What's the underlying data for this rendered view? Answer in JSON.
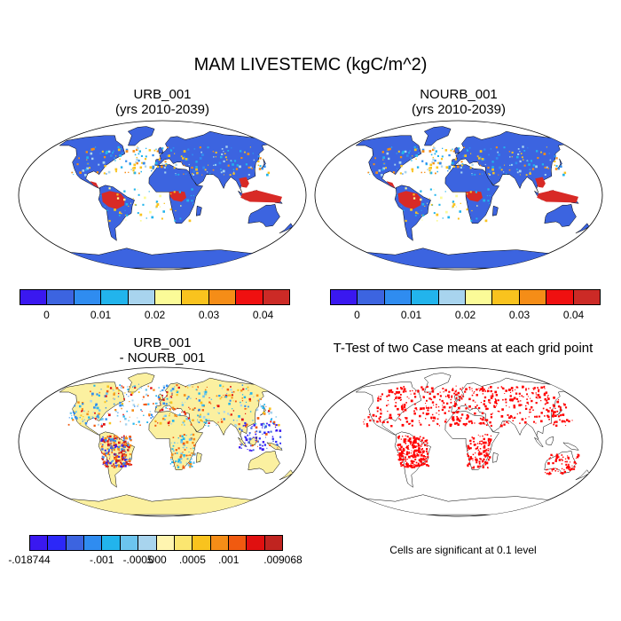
{
  "main_title": "MAM LIVESTEMC (kgC/m^2)",
  "panels": {
    "urb": {
      "title_line1": "URB_001",
      "title_line2": "(yrs 2010-2039)"
    },
    "nourb": {
      "title_line1": "NOURB_001",
      "title_line2": "(yrs 2010-2039)"
    },
    "diff": {
      "title_line1": "URB_001",
      "title_line2": "- NOURB_001"
    },
    "ttest": {
      "title": "T-Test of two Case means at each grid point",
      "note": "Cells are significant at 0.1 level"
    }
  },
  "colorbar_main": {
    "colors": [
      "#3a18f0",
      "#3c64e0",
      "#2f8cf0",
      "#22b4ec",
      "#a8d4ee",
      "#fbfb98",
      "#f9c31e",
      "#f58d17",
      "#f01010",
      "#cc2a26"
    ],
    "ticks": [
      "0",
      "0.01",
      "0.02",
      "0.03",
      "0.04"
    ]
  },
  "colorbar_diff": {
    "colors": [
      "#3a18f0",
      "#2c28f8",
      "#3c64e0",
      "#2f8cf0",
      "#22b4ec",
      "#6cc4ee",
      "#a8d4ee",
      "#fff5b0",
      "#fbe670",
      "#f9c31e",
      "#f58d17",
      "#f05a10",
      "#e01010",
      "#c02420"
    ],
    "ticks": [
      "-.018744",
      "-.001",
      "-.0005",
      ".000",
      ".0005",
      ".001",
      ".009068"
    ]
  },
  "map_fills": {
    "ocean": "#ffffff",
    "land_main": "#3c64e0",
    "tropics_main": "#d82a26",
    "land_diff": "#fbf0a0",
    "ttest_sig": "#ff0000"
  }
}
